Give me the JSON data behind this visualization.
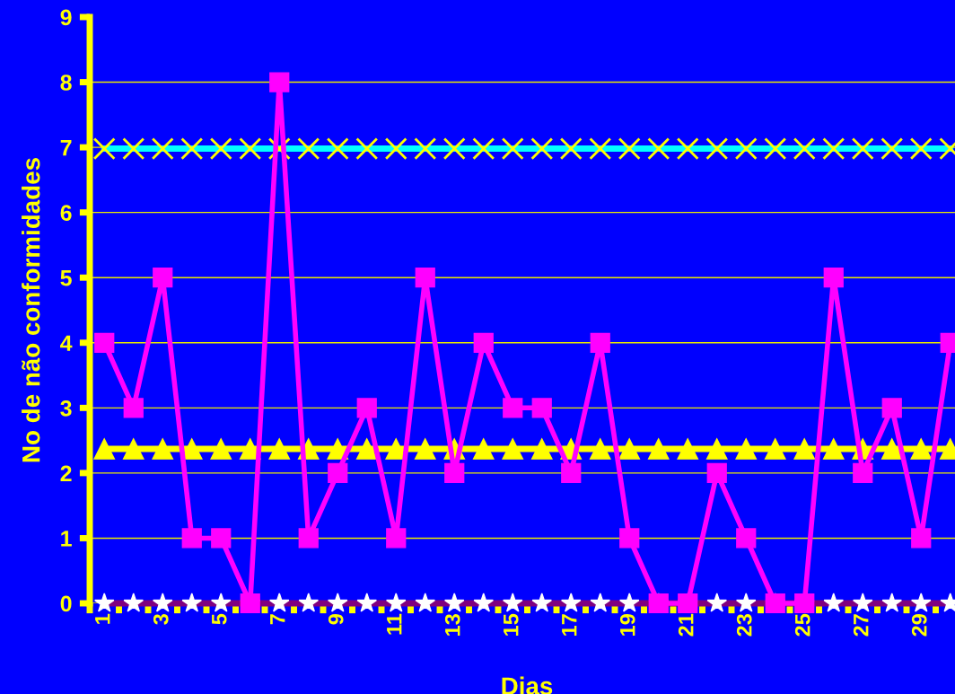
{
  "chart_data": {
    "type": "line",
    "xlabel": "Dias",
    "ylabel": "No de não conformidades",
    "categories": [
      "1",
      null,
      "3",
      null,
      "5",
      null,
      "7",
      null,
      "9",
      null,
      "11",
      null,
      "13",
      null,
      "15",
      null,
      "17",
      null,
      "19",
      null,
      "21",
      null,
      "23",
      null,
      "25",
      null,
      "27",
      null,
      "29",
      null
    ],
    "series": [
      {
        "color": "#00ffff",
        "marker": "cross",
        "values": [
          6.98,
          6.98,
          6.98,
          6.98,
          6.98,
          6.98,
          6.98,
          6.98,
          6.98,
          6.98,
          6.98,
          6.98,
          6.98,
          6.98,
          6.98,
          6.98,
          6.98,
          6.98,
          6.98,
          6.98,
          6.98,
          6.98,
          6.98,
          6.98,
          6.98,
          6.98,
          6.98,
          6.98,
          6.98,
          6.98
        ]
      },
      {
        "color": "#ffff00",
        "marker": "triangle",
        "values": [
          2.37,
          2.37,
          2.37,
          2.37,
          2.37,
          2.37,
          2.37,
          2.37,
          2.37,
          2.37,
          2.37,
          2.37,
          2.37,
          2.37,
          2.37,
          2.37,
          2.37,
          2.37,
          2.37,
          2.37,
          2.37,
          2.37,
          2.37,
          2.37,
          2.37,
          2.37,
          2.37,
          2.37,
          2.37,
          2.37
        ]
      },
      {
        "color": "#800080",
        "marker": "star",
        "values": [
          0,
          0,
          0,
          0,
          0,
          0,
          0,
          0,
          0,
          0,
          0,
          0,
          0,
          0,
          0,
          0,
          0,
          0,
          0,
          0,
          0,
          0,
          0,
          0,
          0,
          0,
          0,
          0,
          0,
          0
        ]
      },
      {
        "color": "#ff00ff",
        "marker": "square",
        "values": [
          4,
          3,
          5,
          1,
          1,
          0,
          8,
          1,
          2,
          3,
          1,
          5,
          2,
          4,
          3,
          3,
          2,
          4,
          1,
          0,
          0,
          2,
          1,
          0,
          0,
          5,
          2,
          3,
          1,
          4
        ]
      }
    ],
    "ylim": [
      0,
      9
    ],
    "yticks": [
      0,
      1,
      2,
      3,
      4,
      5,
      6,
      7,
      8,
      9
    ],
    "grid": "y",
    "line_style": "solid"
  }
}
